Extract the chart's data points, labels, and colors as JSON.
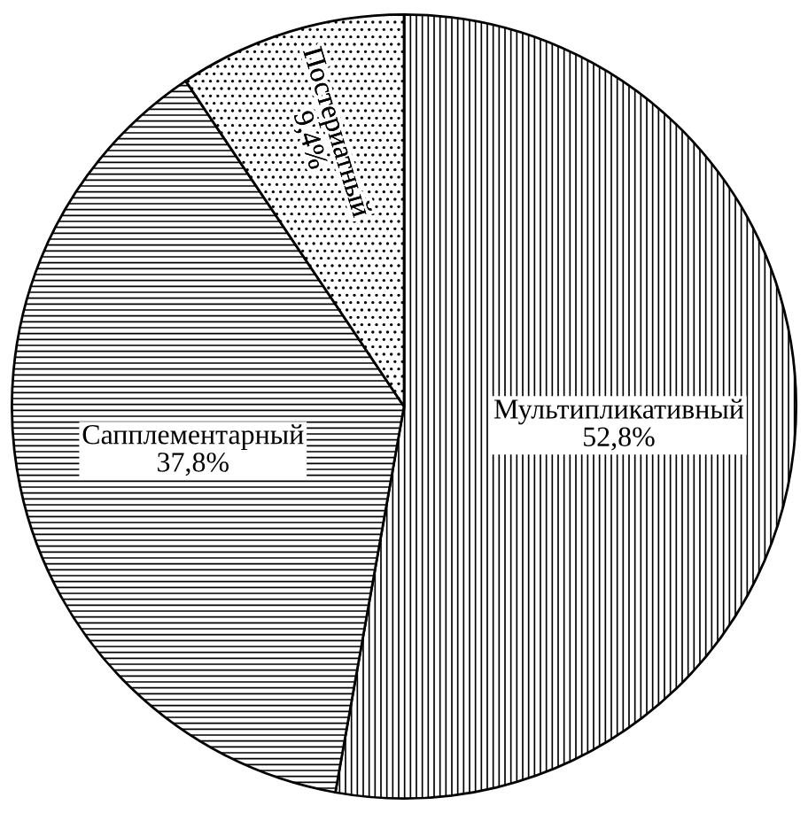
{
  "chart_data": {
    "type": "pie",
    "categories": [
      "Мультипликативный",
      "Сапплементарный",
      "Постериатный"
    ],
    "values": [
      52.8,
      37.8,
      9.4
    ],
    "colors": [
      "#000000",
      "#000000",
      "#000000"
    ],
    "value_labels": [
      "52,8%",
      "37,8%",
      "9,4%"
    ],
    "legend": false
  }
}
